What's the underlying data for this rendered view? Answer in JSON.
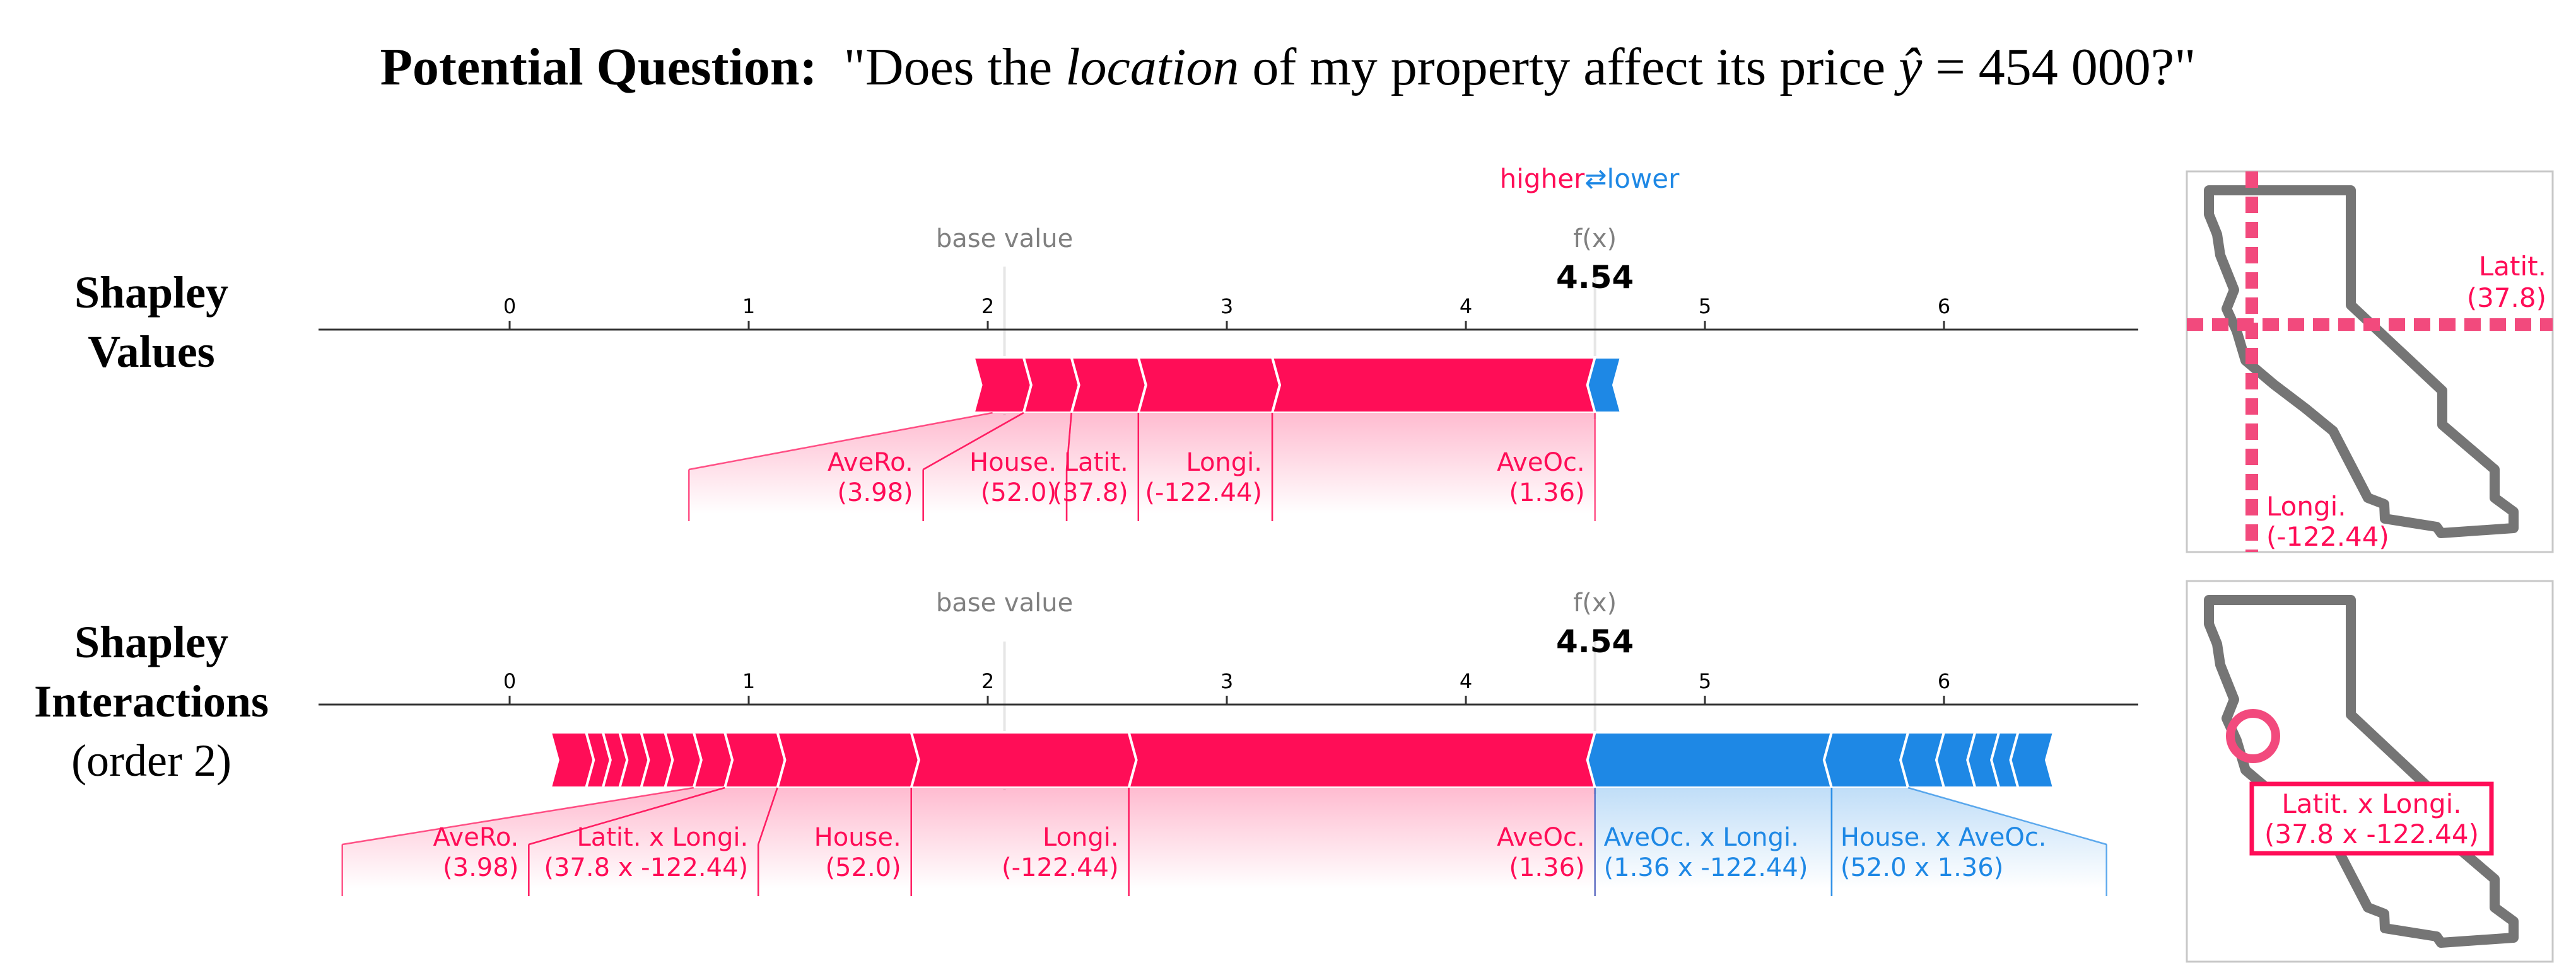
{
  "question": {
    "prefix": "Potential Question:",
    "pre": "\"Does the ",
    "emph": "location",
    "mid": " of my property affect its price ",
    "var": "ŷ",
    "eq": " = 454 000?\""
  },
  "legend": {
    "higher": "higher",
    "arrows": "⇄",
    "lower": "lower"
  },
  "colors": {
    "positive": "#ff0d57",
    "negative": "#1e88e5",
    "axis": "#333333",
    "muted": "#808080",
    "map": "#757575",
    "frame": "#c8c8c8"
  },
  "panels": [
    {
      "row_label": [
        "Shapley",
        "Values"
      ],
      "base_label": "base value",
      "fx_label": "f(x)",
      "fx_value": "4.54"
    },
    {
      "row_label": [
        "Shapley",
        "Interactions",
        "(order 2)"
      ],
      "base_label": "base value",
      "fx_label": "f(x)",
      "fx_value": "4.54"
    }
  ],
  "maps": [
    {
      "lat_label": [
        "Latit.",
        "(37.8)"
      ],
      "lon_label": [
        "Longi.",
        "(-122.44)"
      ]
    },
    {
      "box_label": [
        "Latit. x Longi.",
        "(37.8 x -122.44)"
      ]
    }
  ],
  "chart_data": [
    {
      "type": "bar",
      "title": "Shapley Values",
      "xlim": [
        -0.8,
        6.8
      ],
      "xticks": [
        0,
        1,
        2,
        3,
        4,
        5,
        6
      ],
      "base_value": 2.07,
      "output_value": 4.54,
      "positive_segments": [
        {
          "start": 2.02,
          "end": 2.15,
          "label": "AveRo.",
          "value": "(3.98)"
        },
        {
          "start": 2.15,
          "end": 2.35,
          "label": "House.",
          "value": "(52.0)"
        },
        {
          "start": 2.35,
          "end": 2.63,
          "label": "Latit.",
          "value": "(37.8)"
        },
        {
          "start": 2.63,
          "end": 3.19,
          "label": "Longi.",
          "value": "(-122.44)"
        },
        {
          "start": 3.19,
          "end": 4.54,
          "label": "AveOc.",
          "value": "(1.36)"
        }
      ],
      "negative_segments": [
        {
          "start": 4.54,
          "end": 4.57,
          "label": "",
          "value": ""
        }
      ],
      "label_anchors": [
        0.75,
        1.73,
        2.33,
        2.63,
        3.19,
        4.54
      ]
    },
    {
      "type": "bar",
      "title": "Shapley Interactions (order 2)",
      "xlim": [
        -0.8,
        6.8
      ],
      "xticks": [
        0,
        1,
        2,
        3,
        4,
        5,
        6
      ],
      "base_value": 2.07,
      "output_value": 4.54,
      "positive_segments": [
        {
          "start": 0.25,
          "end": 0.32,
          "label": "",
          "value": ""
        },
        {
          "start": 0.32,
          "end": 0.39,
          "label": "",
          "value": ""
        },
        {
          "start": 0.39,
          "end": 0.46,
          "label": "",
          "value": ""
        },
        {
          "start": 0.46,
          "end": 0.55,
          "label": "",
          "value": ""
        },
        {
          "start": 0.55,
          "end": 0.65,
          "label": "",
          "value": ""
        },
        {
          "start": 0.65,
          "end": 0.77,
          "label": "",
          "value": ""
        },
        {
          "start": 0.77,
          "end": 0.9,
          "label": "AveRo.",
          "value": "(3.98)"
        },
        {
          "start": 0.9,
          "end": 1.12,
          "label": "Latit. x Longi.",
          "value": "(37.8 x -122.44)"
        },
        {
          "start": 1.12,
          "end": 1.68,
          "label": "House.",
          "value": "(52.0)"
        },
        {
          "start": 1.68,
          "end": 2.59,
          "label": "Longi.",
          "value": "(-122.44)"
        },
        {
          "start": 2.59,
          "end": 4.54,
          "label": "AveOc.",
          "value": "(1.36)"
        }
      ],
      "negative_segments": [
        {
          "start": 4.54,
          "end": 5.53,
          "label": "AveOc. x Longi.",
          "value": "(1.36 x -122.44)"
        },
        {
          "start": 5.53,
          "end": 5.85,
          "label": "House. x AveOc.",
          "value": "(52.0 x 1.36)"
        },
        {
          "start": 5.85,
          "end": 6.0,
          "label": "",
          "value": ""
        },
        {
          "start": 6.0,
          "end": 6.13,
          "label": "",
          "value": ""
        },
        {
          "start": 6.13,
          "end": 6.23,
          "label": "",
          "value": ""
        },
        {
          "start": 6.23,
          "end": 6.31,
          "label": "",
          "value": ""
        },
        {
          "start": 6.31,
          "end": 6.38,
          "label": "",
          "value": ""
        }
      ],
      "label_anchors": [
        -0.7,
        0.08,
        1.04,
        1.68,
        2.59,
        4.54,
        5.53,
        6.68
      ]
    }
  ]
}
